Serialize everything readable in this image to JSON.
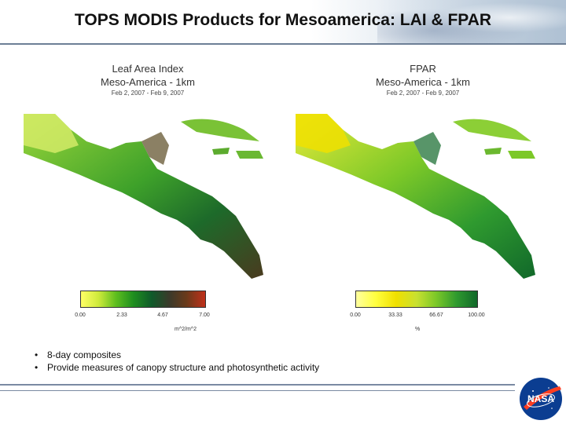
{
  "slide": {
    "title": "TOPS MODIS Products for Mesoamerica: LAI & FPAR"
  },
  "lai_panel": {
    "title": "Leaf Area Index",
    "subtitle": "Meso-America - 1km",
    "dates": "Feb 2, 2007 - Feb 9, 2007",
    "ticks": [
      "0.00",
      "2.33",
      "4.67",
      "7.00"
    ],
    "unit": "m^2/m^2",
    "colors": [
      "#ffff66",
      "#cfea3b",
      "#5fbf1f",
      "#1f8f1f",
      "#0f5a2a",
      "#3a3a2a",
      "#6a3a1a",
      "#c0301a"
    ]
  },
  "fpar_panel": {
    "title": "FPAR",
    "subtitle": "Meso-America - 1km",
    "dates": "Feb 2, 2007 - Feb 9, 2007",
    "ticks": [
      "0.00",
      "33.33",
      "66.67",
      "100.00"
    ],
    "unit": "%",
    "colors": [
      "#ffffa0",
      "#ffff40",
      "#f0e000",
      "#c8e030",
      "#7cc828",
      "#2f9a2f",
      "#11682a"
    ]
  },
  "bullets": [
    "8-day composites",
    "Provide measures of canopy structure and photosynthetic activity"
  ],
  "logo": {
    "text": "NASA",
    "icon": "nasa-meatball-logo",
    "colors": {
      "blue": "#0b3d91",
      "red": "#fc3d21"
    }
  }
}
